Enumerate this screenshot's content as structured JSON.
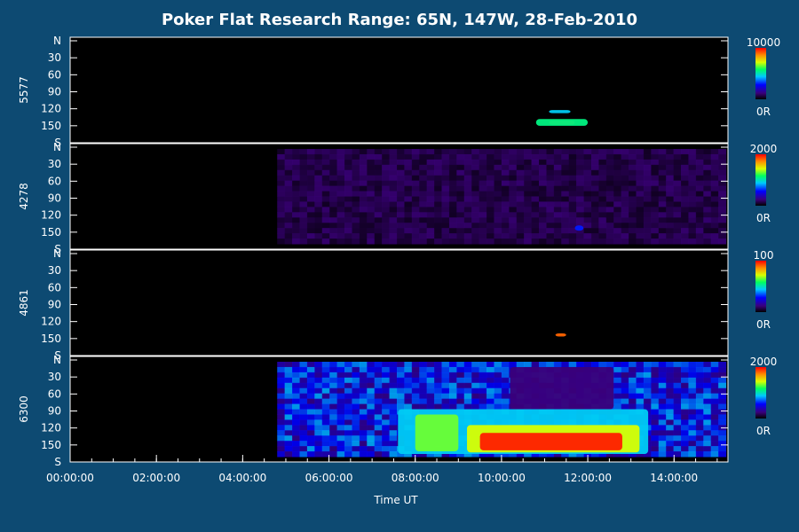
{
  "title": "Poker Flat Research Range: 65N, 147W, 28-Feb-2010",
  "colors": {
    "background": "#0d4a72",
    "plot": "#000000",
    "axis": "#ffffff"
  },
  "chart_data": {
    "type": "heatmap",
    "xlabel": "Time UT",
    "xlim": [
      "00:00:00",
      "15:15:00"
    ],
    "x_ticks": [
      "00:00:00",
      "02:00:00",
      "04:00:00",
      "06:00:00",
      "08:00:00",
      "10:00:00",
      "12:00:00",
      "14:00:00"
    ],
    "y_ticks": [
      "N",
      "30",
      "60",
      "90",
      "120",
      "150",
      "S"
    ],
    "panels": [
      {
        "ylabel": "5577",
        "scale": {
          "max_label": "10000",
          "min_label": "0R"
        },
        "emission": [
          {
            "t0": 11.1,
            "t1": 11.7,
            "y0": 148,
            "y1": 156,
            "level": 0.95
          },
          {
            "t0": 10.8,
            "t1": 12.0,
            "y0": 145,
            "y1": 158,
            "level": 0.55
          },
          {
            "t0": 11.1,
            "t1": 11.6,
            "y0": 128,
            "y1": 134,
            "level": 0.45
          }
        ]
      },
      {
        "ylabel": "4278",
        "scale": {
          "max_label": "2000",
          "min_label": "0R"
        },
        "emission": [
          {
            "t0": 4.8,
            "t1": 15.2,
            "y0": 0,
            "y1": 180,
            "level": 0.08,
            "noise": true
          },
          {
            "t0": 11.7,
            "t1": 11.9,
            "y0": 145,
            "y1": 155,
            "level": 0.3
          }
        ]
      },
      {
        "ylabel": "4861",
        "scale": {
          "max_label": "100",
          "min_label": "0R"
        },
        "emission": [
          {
            "t0": 11.25,
            "t1": 11.5,
            "y0": 148,
            "y1": 154,
            "level": 0.9
          }
        ]
      },
      {
        "ylabel": "6300",
        "scale": {
          "max_label": "2000",
          "min_label": "0R"
        },
        "emission": [
          {
            "t0": 4.8,
            "t1": 15.2,
            "y0": 0,
            "y1": 180,
            "level": 0.28,
            "noise": true
          },
          {
            "t0": 7.6,
            "t1": 13.4,
            "y0": 90,
            "y1": 175,
            "level": 0.45
          },
          {
            "t0": 8.0,
            "t1": 9.0,
            "y0": 100,
            "y1": 170,
            "level": 0.65
          },
          {
            "t0": 9.2,
            "t1": 13.2,
            "y0": 120,
            "y1": 172,
            "level": 0.72
          },
          {
            "t0": 9.5,
            "t1": 12.8,
            "y0": 135,
            "y1": 168,
            "level": 0.97
          },
          {
            "t0": 10.2,
            "t1": 12.6,
            "y0": 10,
            "y1": 90,
            "level": 0.12
          }
        ]
      }
    ]
  }
}
